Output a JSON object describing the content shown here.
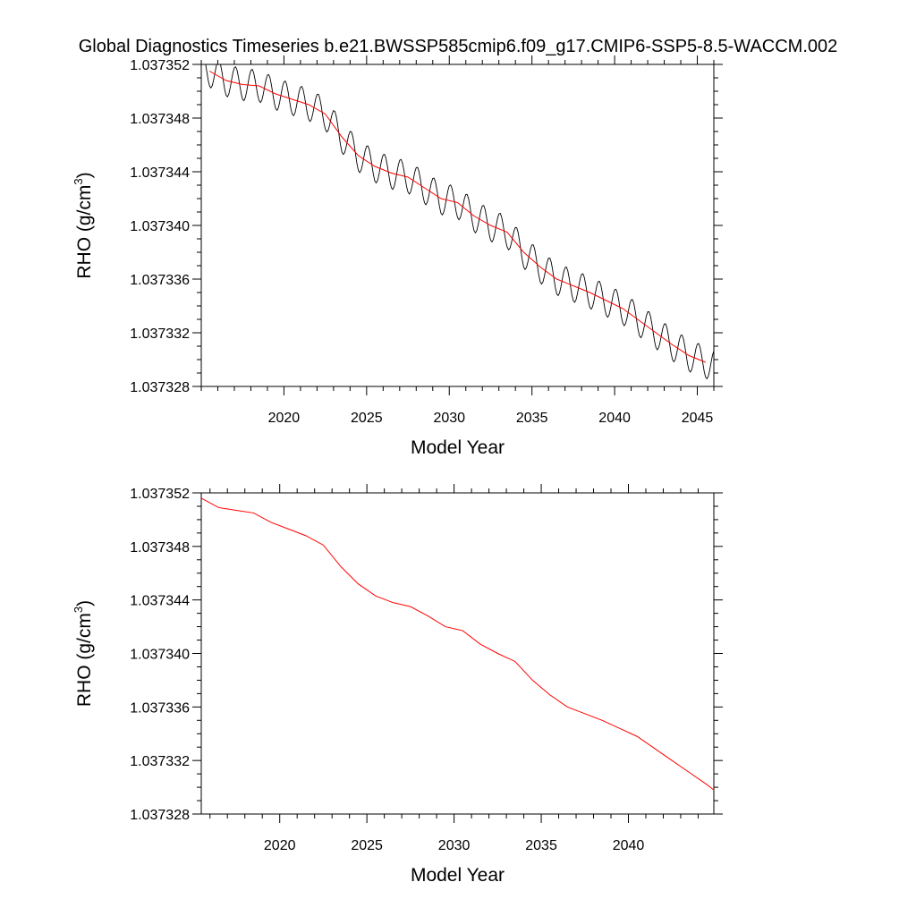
{
  "title": "Global Diagnostics Timeseries b.e21.BWSSP585cmip6.f09_g17.CMIP6-SSP5-8.5-WACCM.002",
  "colors": {
    "monthly": "#000000",
    "annual": "#ff0000",
    "frame": "#000000"
  },
  "chart_data": [
    {
      "type": "line",
      "xlabel": "Model Year",
      "ylabel_main": "RHO (g/cm",
      "ylabel_sup": "3",
      "ylabel_close": ")",
      "xlim": [
        2015.0,
        2046.0
      ],
      "ylim": [
        1.037328,
        1.037352
      ],
      "xticks": [
        "2020",
        "2025",
        "2030",
        "2035",
        "2040",
        "2045"
      ],
      "yticks": [
        "1.037328",
        "1.037332",
        "1.037336",
        "1.037340",
        "1.037344",
        "1.037348",
        "1.037352"
      ],
      "seasonal_amplitude": 1.2e-06,
      "series": [
        {
          "name": "monthly",
          "color": "#000000",
          "x": [
            2015.5,
            2016.5,
            2017.5,
            2018.5,
            2019.5,
            2020.5,
            2021.5,
            2022.5,
            2023.5,
            2024.5,
            2025.5,
            2026.5,
            2027.5,
            2028.5,
            2029.5,
            2030.5,
            2031.5,
            2032.5,
            2033.5,
            2034.5,
            2035.5,
            2036.5,
            2037.5,
            2038.5,
            2039.5,
            2040.5,
            2041.5,
            2042.5,
            2043.5,
            2044.5,
            2045.5
          ],
          "values": [
            1.0373515,
            1.0373508,
            1.0373505,
            1.0373504,
            1.0373498,
            1.0373494,
            1.037349,
            1.0373483,
            1.0373466,
            1.0373452,
            1.0373444,
            1.0373439,
            1.0373436,
            1.0373428,
            1.037342,
            1.0373417,
            1.0373407,
            1.03734,
            1.0373395,
            1.037338,
            1.0373369,
            1.037336,
            1.0373355,
            1.037335,
            1.0373344,
            1.0373338,
            1.0373329,
            1.037332,
            1.0373311,
            1.0373303,
            1.0373298
          ]
        },
        {
          "name": "annual",
          "color": "#ff0000",
          "x": [
            2015.5,
            2016.5,
            2017.5,
            2018.5,
            2019.5,
            2020.5,
            2021.5,
            2022.5,
            2023.5,
            2024.5,
            2025.5,
            2026.5,
            2027.5,
            2028.5,
            2029.5,
            2030.5,
            2031.5,
            2032.5,
            2033.5,
            2034.5,
            2035.5,
            2036.5,
            2037.5,
            2038.5,
            2039.5,
            2040.5,
            2041.5,
            2042.5,
            2043.5,
            2044.5,
            2045.5
          ],
          "values": [
            1.0373515,
            1.0373508,
            1.0373505,
            1.0373504,
            1.0373498,
            1.0373494,
            1.037349,
            1.0373483,
            1.0373466,
            1.0373452,
            1.0373444,
            1.0373439,
            1.0373436,
            1.0373428,
            1.037342,
            1.0373417,
            1.0373407,
            1.03734,
            1.0373395,
            1.037338,
            1.0373369,
            1.037336,
            1.0373355,
            1.037335,
            1.0373344,
            1.0373338,
            1.0373329,
            1.037332,
            1.0373311,
            1.0373303,
            1.0373298
          ]
        }
      ]
    },
    {
      "type": "line",
      "xlabel": "Model Year",
      "ylabel_main": "RHO (g/cm",
      "ylabel_sup": "3",
      "ylabel_close": ")",
      "xlim": [
        2015.5,
        2044.9
      ],
      "ylim": [
        1.037328,
        1.037352
      ],
      "xticks": [
        "2020",
        "2025",
        "2030",
        "2035",
        "2040"
      ],
      "yticks": [
        "1.037328",
        "1.037332",
        "1.037336",
        "1.037340",
        "1.037344",
        "1.037348",
        "1.037352"
      ],
      "series": [
        {
          "name": "annual",
          "color": "#ff0000",
          "x": [
            2015.5,
            2016.5,
            2017.5,
            2018.5,
            2019.5,
            2020.5,
            2021.5,
            2022.5,
            2023.5,
            2024.5,
            2025.5,
            2026.5,
            2027.5,
            2028.5,
            2029.5,
            2030.5,
            2031.5,
            2032.5,
            2033.5,
            2034.5,
            2035.5,
            2036.5,
            2037.5,
            2038.5,
            2039.5,
            2040.5,
            2041.5,
            2042.5,
            2043.5,
            2044.5,
            2044.9
          ],
          "values": [
            1.0373516,
            1.0373509,
            1.0373507,
            1.0373505,
            1.0373498,
            1.0373493,
            1.0373488,
            1.0373481,
            1.0373465,
            1.0373452,
            1.0373443,
            1.0373438,
            1.0373435,
            1.0373428,
            1.037342,
            1.0373417,
            1.0373407,
            1.03734,
            1.0373394,
            1.037338,
            1.0373369,
            1.037336,
            1.0373355,
            1.037335,
            1.0373344,
            1.0373338,
            1.0373329,
            1.037332,
            1.0373311,
            1.0373302,
            1.0373298
          ]
        }
      ]
    }
  ]
}
